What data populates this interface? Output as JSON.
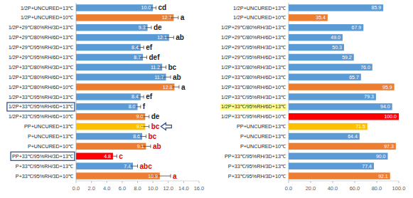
{
  "chart_data": [
    {
      "type": "bar",
      "orientation": "horizontal",
      "data_labels": true,
      "grid": false,
      "categories": [
        "1/2P+UNCURED+13℃",
        "1/2P+UNCURED+10℃",
        "1/2P+29℃/80%RH/3D+13℃",
        "1/2P+29℃/80%RH/6D+13℃",
        "1/2P+29℃/95%RH/3D+13℃",
        "1/2P+29℃/95%RH/6D+13℃",
        "1/2P+33℃/80%RH/3D+13℃",
        "1/2P+33℃/80%RH/6D+13℃",
        "1/2P+33℃/80%RH/6D+10℃",
        "1/2P+33℃/95%RH/3D+13℃",
        "1/2P+33℃/95%RH/6D+13℃",
        "1/2P+33℃/95%RH/6D+10℃",
        "PP+UNCURED+13℃",
        "P+UNCURED+13℃",
        "P+UNCURED+10℃",
        "PP+33℃/95%RH/3D+13℃",
        "P+33℃/95%RH/3D+13℃",
        "P+33℃/95%RH/3D+10℃"
      ],
      "values": [
        10.0,
        12.7,
        9.3,
        12.1,
        8.4,
        8.7,
        11.2,
        11.7,
        12.8,
        8.4,
        8.0,
        9.0,
        9.0,
        8.6,
        9.1,
        4.8,
        7.4,
        10.9
      ],
      "value_labels": [
        "10.0",
        "12.7",
        "9.3",
        "12.1",
        "8.4",
        "8.7",
        "11.2",
        "11.7",
        "12.8",
        "8.4",
        "8.0",
        "9.0",
        "9.0",
        "8.6",
        "9.1",
        "4.8",
        "7.4",
        "10.9"
      ],
      "errors": [
        0.4,
        0.6,
        0.5,
        0.6,
        0.4,
        0.5,
        0.5,
        0.6,
        0.6,
        0.4,
        0.4,
        0.5,
        0.5,
        0.5,
        0.6,
        0.5,
        0.6,
        1.4
      ],
      "annotations": [
        "cd",
        "a",
        "de",
        "ab",
        "ef",
        "def",
        "bc",
        "ab",
        "a",
        "ef",
        "f",
        "de",
        "bc",
        "bc",
        "ab",
        "c",
        "abc",
        "a"
      ],
      "colors": [
        "#5b9bd5",
        "#ed7d31",
        "#5b9bd5",
        "#5b9bd5",
        "#5b9bd5",
        "#5b9bd5",
        "#5b9bd5",
        "#5b9bd5",
        "#ed7d31",
        "#5b9bd5",
        "#5b9bd5",
        "#ed7d31",
        "#ffc000",
        "#5b9bd5",
        "#ed7d31",
        "#ff0000",
        "#5b9bd5",
        "#ed7d31"
      ],
      "xlim": [
        0,
        16
      ],
      "xticks": [
        {
          "value": 0,
          "label": "0.0"
        },
        {
          "value": 2,
          "label": "2.0"
        },
        {
          "value": 4,
          "label": "4.0"
        },
        {
          "value": 6,
          "label": "6.0"
        },
        {
          "value": 8,
          "label": "8.0"
        },
        {
          "value": 10,
          "label": "10.0"
        },
        {
          "value": 12,
          "label": "12.0"
        },
        {
          "value": 14,
          "label": "14.0"
        },
        {
          "value": 16,
          "label": "16.0"
        }
      ]
    },
    {
      "type": "bar",
      "orientation": "horizontal",
      "data_labels": true,
      "grid": false,
      "categories": [
        "1/2P+UNCURED+13℃",
        "1/2P+UNCURED+10℃",
        "1/2P+29℃/80%RH/3D+13℃",
        "1/2P+29℃/80%RH/6D+13℃",
        "1/2P+29℃/95%RH/3D+13℃",
        "1/2P+29℃/95%RH/6D+13℃",
        "1/2P+33℃/80%RH/3D+13℃",
        "1/2P+33℃/80%RH/6D+13℃",
        "1/2P+33℃/80%RH/6D+10℃",
        "1/2P+33℃/95%RH/3D+13℃",
        "1/2P+33℃/95%RH/6D+13℃",
        "1/2P+33℃/95%RH/6D+10℃",
        "PP+UNCURED+13℃",
        "P+UNCURED+13℃",
        "P+UNCURED+10℃",
        "PP+33℃/95%RH/3D+13℃",
        "P+33℃/95%RH/3D+13℃",
        "P+33℃/95%RH/3D+10℃"
      ],
      "values": [
        85.9,
        35.4,
        67.9,
        49.0,
        50.3,
        59.2,
        76.0,
        65.7,
        95.9,
        79.3,
        94.0,
        100.0,
        71.5,
        64.4,
        97.3,
        90.0,
        77.4,
        92.1
      ],
      "value_labels": [
        "85.9",
        "35.4",
        "67.9",
        "49.0",
        "50.3",
        "59.2",
        "76.0",
        "65.7",
        "95.9",
        "79.3",
        "94.0",
        "100.0",
        "71.5",
        "64.4",
        "97.3",
        "90.0",
        "77.4",
        "92.1"
      ],
      "colors": [
        "#5b9bd5",
        "#ed7d31",
        "#5b9bd5",
        "#5b9bd5",
        "#5b9bd5",
        "#5b9bd5",
        "#5b9bd5",
        "#5b9bd5",
        "#ed7d31",
        "#5b9bd5",
        "#5b9bd5",
        "#ff0000",
        "#ffc000",
        "#5b9bd5",
        "#ed7d31",
        "#5b9bd5",
        "#5b9bd5",
        "#ed7d31"
      ],
      "xlim": [
        0,
        100
      ],
      "xticks": [
        {
          "value": 0,
          "label": "0.0"
        },
        {
          "value": 20,
          "label": "20.0"
        },
        {
          "value": 40,
          "label": "40.0"
        },
        {
          "value": 60,
          "label": "60.0"
        },
        {
          "value": 80,
          "label": "80.0"
        },
        {
          "value": 100,
          "label": "100.0"
        }
      ]
    }
  ]
}
